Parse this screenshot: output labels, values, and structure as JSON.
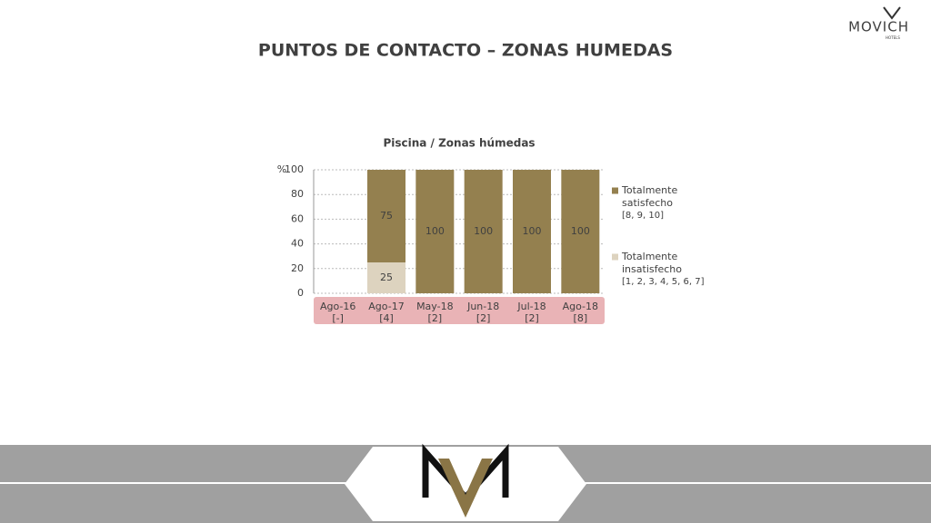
{
  "brand": "MOVICH",
  "brand_sub": "HOTELS",
  "heading": "PUNTOS DE CONTACTO – ZONAS HUMEDAS",
  "chart_data": {
    "type": "stacked_bar",
    "title": "Piscina / Zonas húmedas",
    "ylabel": "%",
    "categories": [
      "Ago-16",
      "Ago-17",
      "May-18",
      "Jun-18",
      "Jul-18",
      "Ago-18"
    ],
    "category_counts": [
      "[-]",
      "[4]",
      "[2]",
      "[2]",
      "[2]",
      "[8]"
    ],
    "series": [
      {
        "name": "Totalmente insatisfecho",
        "note": "[1, 2, 3, 4, 5, 6, 7]",
        "color": "#ddd3bf",
        "values": [
          null,
          25,
          0,
          0,
          0,
          0
        ]
      },
      {
        "name": "Totalmente satisfecho",
        "note": "[8, 9, 10]",
        "color": "#94804f",
        "values": [
          null,
          75,
          100,
          100,
          100,
          100
        ]
      }
    ],
    "ylim": [
      0,
      100
    ],
    "yticks": [
      0,
      20,
      40,
      60,
      80,
      100
    ],
    "grid": true,
    "legend": "right"
  }
}
